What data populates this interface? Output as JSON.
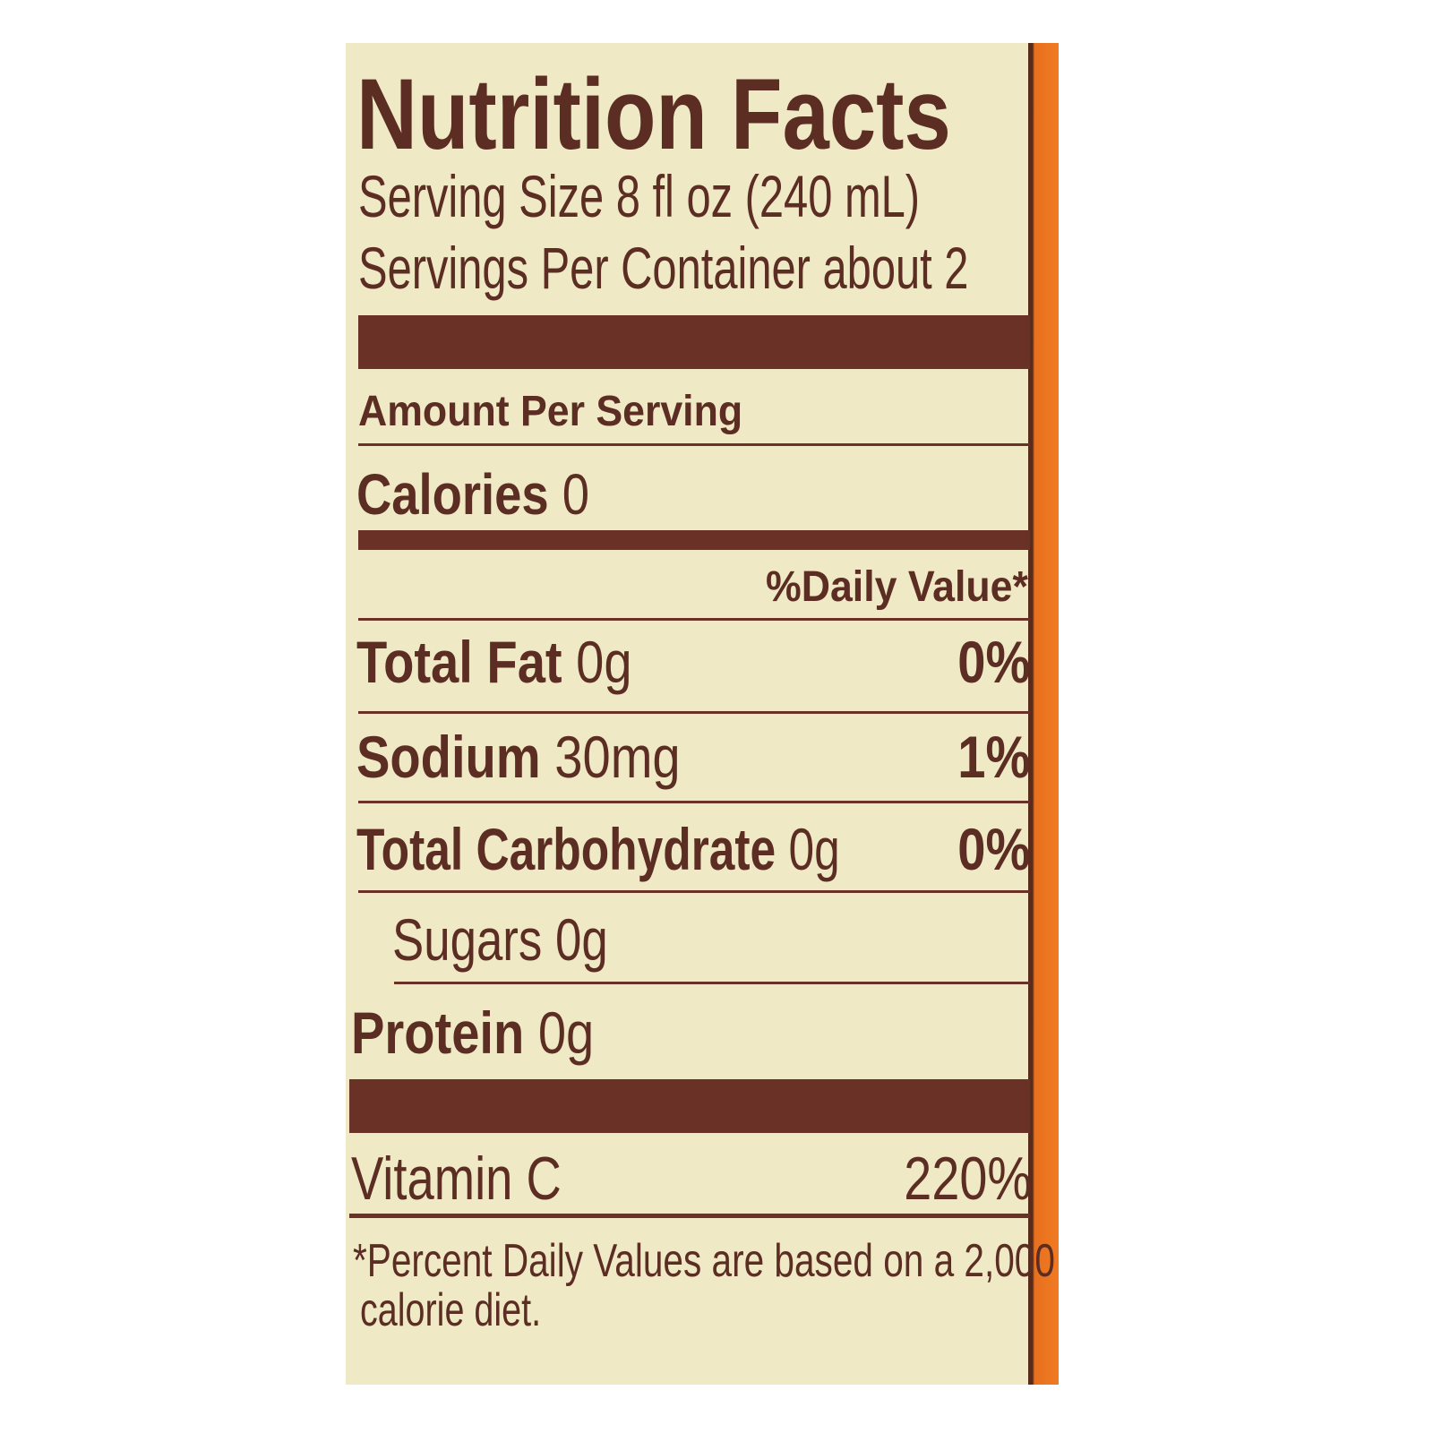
{
  "title": "Nutrition Facts",
  "serving_size": "Serving Size 8 fl oz (240 mL)",
  "servings_per_container": "Servings Per Container about 2",
  "amount_per_serving": "Amount Per Serving",
  "calories": {
    "label": "Calories",
    "value": "0"
  },
  "daily_value_header": "%Daily Value*",
  "nutrients": [
    {
      "label": "Total Fat",
      "amount": "0g",
      "dv": "0%"
    },
    {
      "label": "Sodium",
      "amount": "30mg",
      "dv": "1%"
    },
    {
      "label": "Total Carbohydrate",
      "amount": "0g",
      "dv": "0%"
    },
    {
      "label": "Sugars",
      "amount": "0g",
      "dv": ""
    },
    {
      "label": "Protein",
      "amount": "0g",
      "dv": ""
    }
  ],
  "vitamins": [
    {
      "label": "Vitamin C",
      "dv": "220%"
    }
  ],
  "footnote_line1": "*Percent Daily Values are based on a 2,000",
  "footnote_line2": "calorie diet.",
  "colors": {
    "background": "#efe9c5",
    "text": "#5b2d23",
    "edge": "#f07a22"
  }
}
